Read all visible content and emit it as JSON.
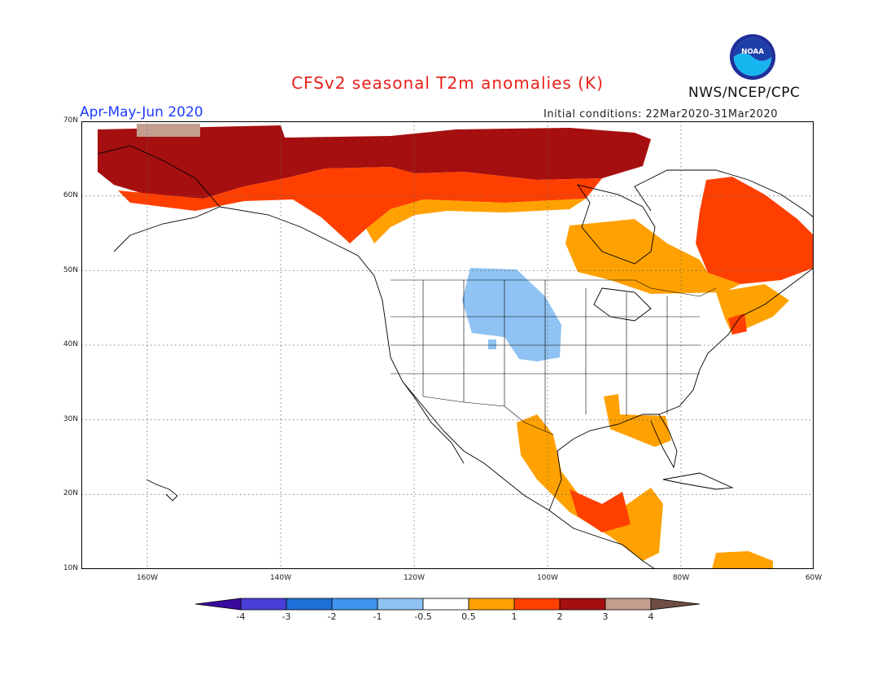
{
  "header": {
    "title": "CFSv2 seasonal T2m anomalies (K)",
    "period": "Apr-May-Jun 2020",
    "initial_conditions": "Initial conditions: 22Mar2020-31Mar2020",
    "agency": "NWS/NCEP/CPC",
    "logo_text": "NOAA"
  },
  "map": {
    "lat_labels": [
      "70N",
      "60N",
      "50N",
      "40N",
      "30N",
      "20N",
      "10N"
    ],
    "lon_labels": [
      "160W",
      "140W",
      "120W",
      "100W",
      "80W",
      "60W"
    ],
    "extent": {
      "lon": [
        -171,
        -60
      ],
      "lat": [
        10,
        70
      ]
    }
  },
  "legend": {
    "colors": [
      "#3a0a9e",
      "#4a3fd8",
      "#1f6fd8",
      "#3f95ee",
      "#8fc3f3",
      "#ffffff",
      "#ffa100",
      "#ff3f00",
      "#a50f0f",
      "#c49d8f",
      "#6e4e44"
    ],
    "tick_labels": [
      "-4",
      "-3",
      "-2",
      "-1",
      "-0.5",
      "0.5",
      "1",
      "2",
      "3",
      "4"
    ]
  },
  "icons": {
    "logo": "noaa-logo-icon"
  }
}
